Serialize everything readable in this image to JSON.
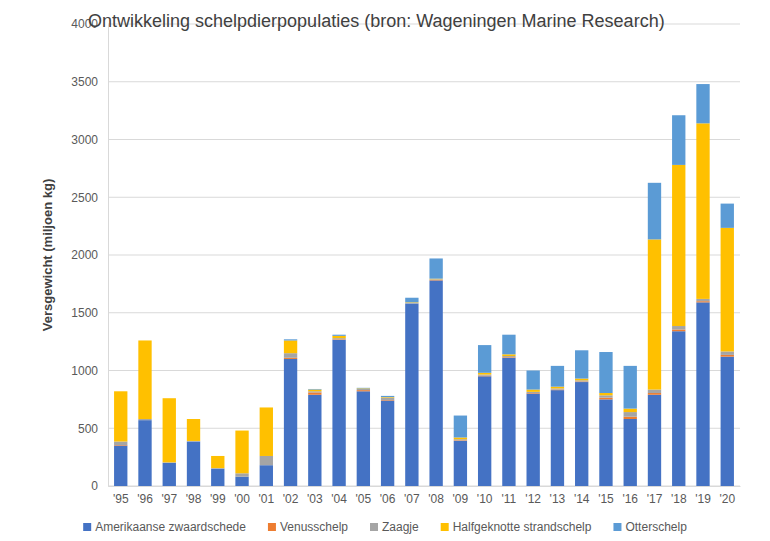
{
  "chart_data": {
    "type": "bar",
    "title": "Ontwikkeling schelpdierpopulaties  (bron: Wageningen Marine Research)",
    "ylabel": "Versgewicht (miljoen kg)",
    "stacked": true,
    "grid": true,
    "legend": "bottom",
    "categories": [
      "'95",
      "'96",
      "'97",
      "'98",
      "'99",
      "'00",
      "'01",
      "'02",
      "'03",
      "'04",
      "'05",
      "'06",
      "'07",
      "'08",
      "'09",
      "'10",
      "'11",
      "'12",
      "'13",
      "'14",
      "'15",
      "'16",
      "'17",
      "'18",
      "'19",
      "'20"
    ],
    "ylim": [
      0,
      4000
    ],
    "yticks": [
      0,
      500,
      1000,
      1500,
      2000,
      2500,
      3000,
      3500,
      4000
    ],
    "series": [
      {
        "name": "Amerikaanse zwaardschede",
        "color": "#4472c4",
        "values": [
          350,
          570,
          200,
          385,
          150,
          80,
          180,
          1100,
          790,
          1265,
          820,
          740,
          1580,
          1780,
          390,
          950,
          1110,
          800,
          830,
          900,
          750,
          580,
          790,
          1340,
          1590,
          1120
        ]
      },
      {
        "name": "Venusschelp",
        "color": "#ed7d31",
        "values": [
          5,
          0,
          0,
          0,
          0,
          0,
          0,
          10,
          20,
          5,
          10,
          5,
          0,
          5,
          5,
          5,
          5,
          5,
          5,
          5,
          15,
          20,
          15,
          15,
          10,
          15
        ]
      },
      {
        "name": "Zaagje",
        "color": "#a5a5a5",
        "values": [
          30,
          10,
          5,
          5,
          5,
          30,
          80,
          40,
          10,
          10,
          10,
          20,
          5,
          5,
          10,
          10,
          10,
          10,
          10,
          10,
          20,
          40,
          30,
          30,
          20,
          30
        ]
      },
      {
        "name": "Halfgeknotte strandschelp",
        "color": "#ffc000",
        "values": [
          435,
          680,
          555,
          190,
          105,
          370,
          420,
          110,
          15,
          20,
          5,
          5,
          5,
          5,
          15,
          15,
          15,
          20,
          15,
          15,
          20,
          30,
          1300,
          1395,
          1520,
          1070
        ]
      },
      {
        "name": "Otterschelp",
        "color": "#5b9bd5",
        "values": [
          0,
          0,
          0,
          0,
          0,
          0,
          0,
          10,
          5,
          10,
          5,
          10,
          40,
          175,
          190,
          240,
          170,
          165,
          180,
          245,
          355,
          370,
          490,
          430,
          340,
          210
        ]
      }
    ]
  }
}
